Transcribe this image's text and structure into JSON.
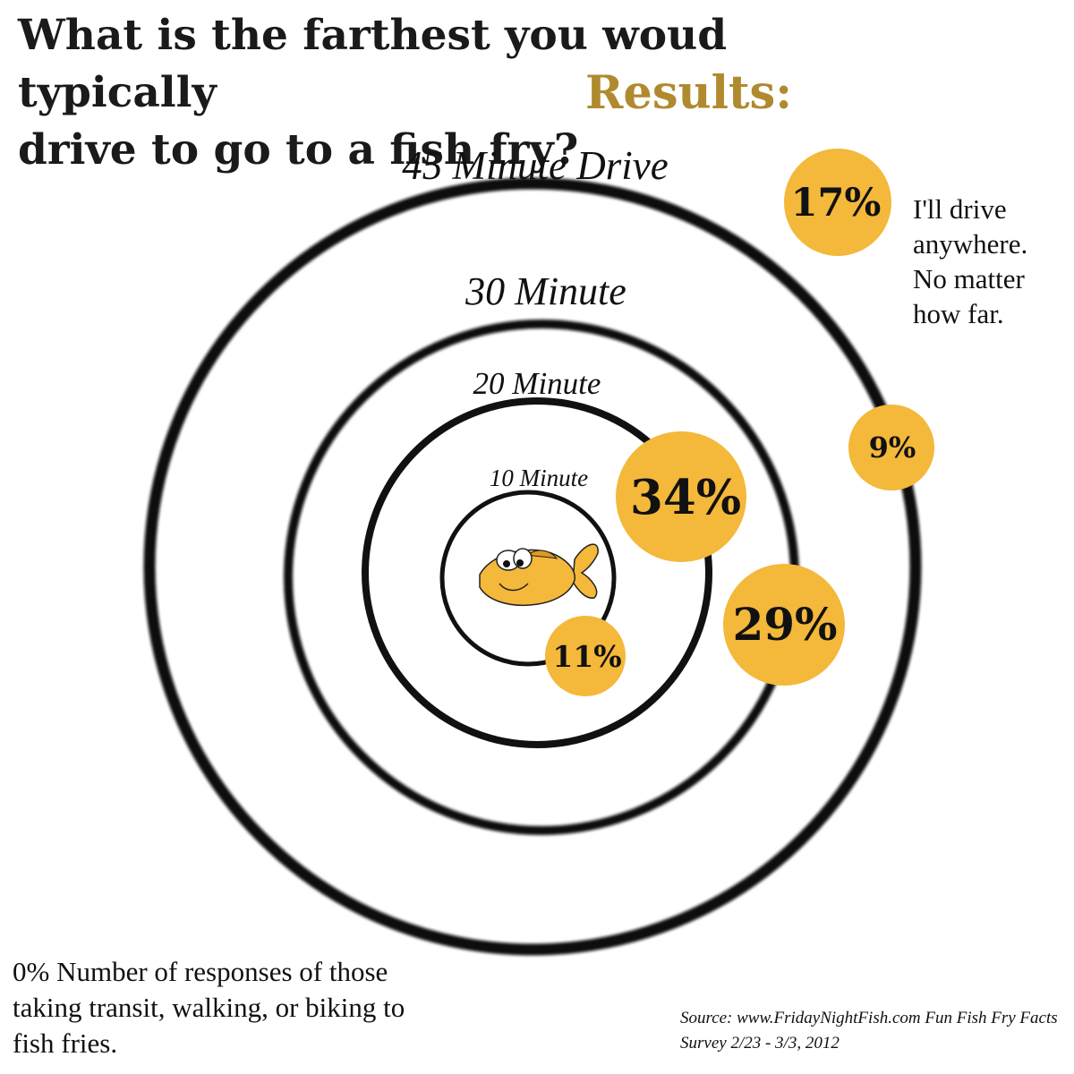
{
  "chart_data": {
    "type": "bubble-target",
    "title_line1": "What is the farthest you woud typically",
    "title_line2": "drive to go to a fish fry?",
    "results_label": "Results:",
    "rings": [
      {
        "name": "10 Minute"
      },
      {
        "name": "20 Minute"
      },
      {
        "name": "30 Minute"
      },
      {
        "name": "45 Minute Drive"
      }
    ],
    "responses": [
      {
        "category": "10 Minute",
        "percent": 11,
        "label": "11%"
      },
      {
        "category": "20 Minute",
        "percent": 34,
        "label": "34%"
      },
      {
        "category": "30 Minute",
        "percent": 29,
        "label": "29%"
      },
      {
        "category": "45 Minute Drive",
        "percent": 9,
        "label": "9%"
      },
      {
        "category": "I'll drive anywhere. No matter how far.",
        "percent": 17,
        "label": "17%"
      }
    ],
    "anywhere_note": "I'll drive anywhere. No matter how far.",
    "transit_note": "0% Number of responses of those taking transit, walking, or biking to fish fries.",
    "source": "Source:  www.FridayNightFish.com Fun Fish Fry Facts Survey 2/23 - 3/3, 2012",
    "bubble_color": "#f4b83a",
    "accent_color": "#b08a2e"
  }
}
